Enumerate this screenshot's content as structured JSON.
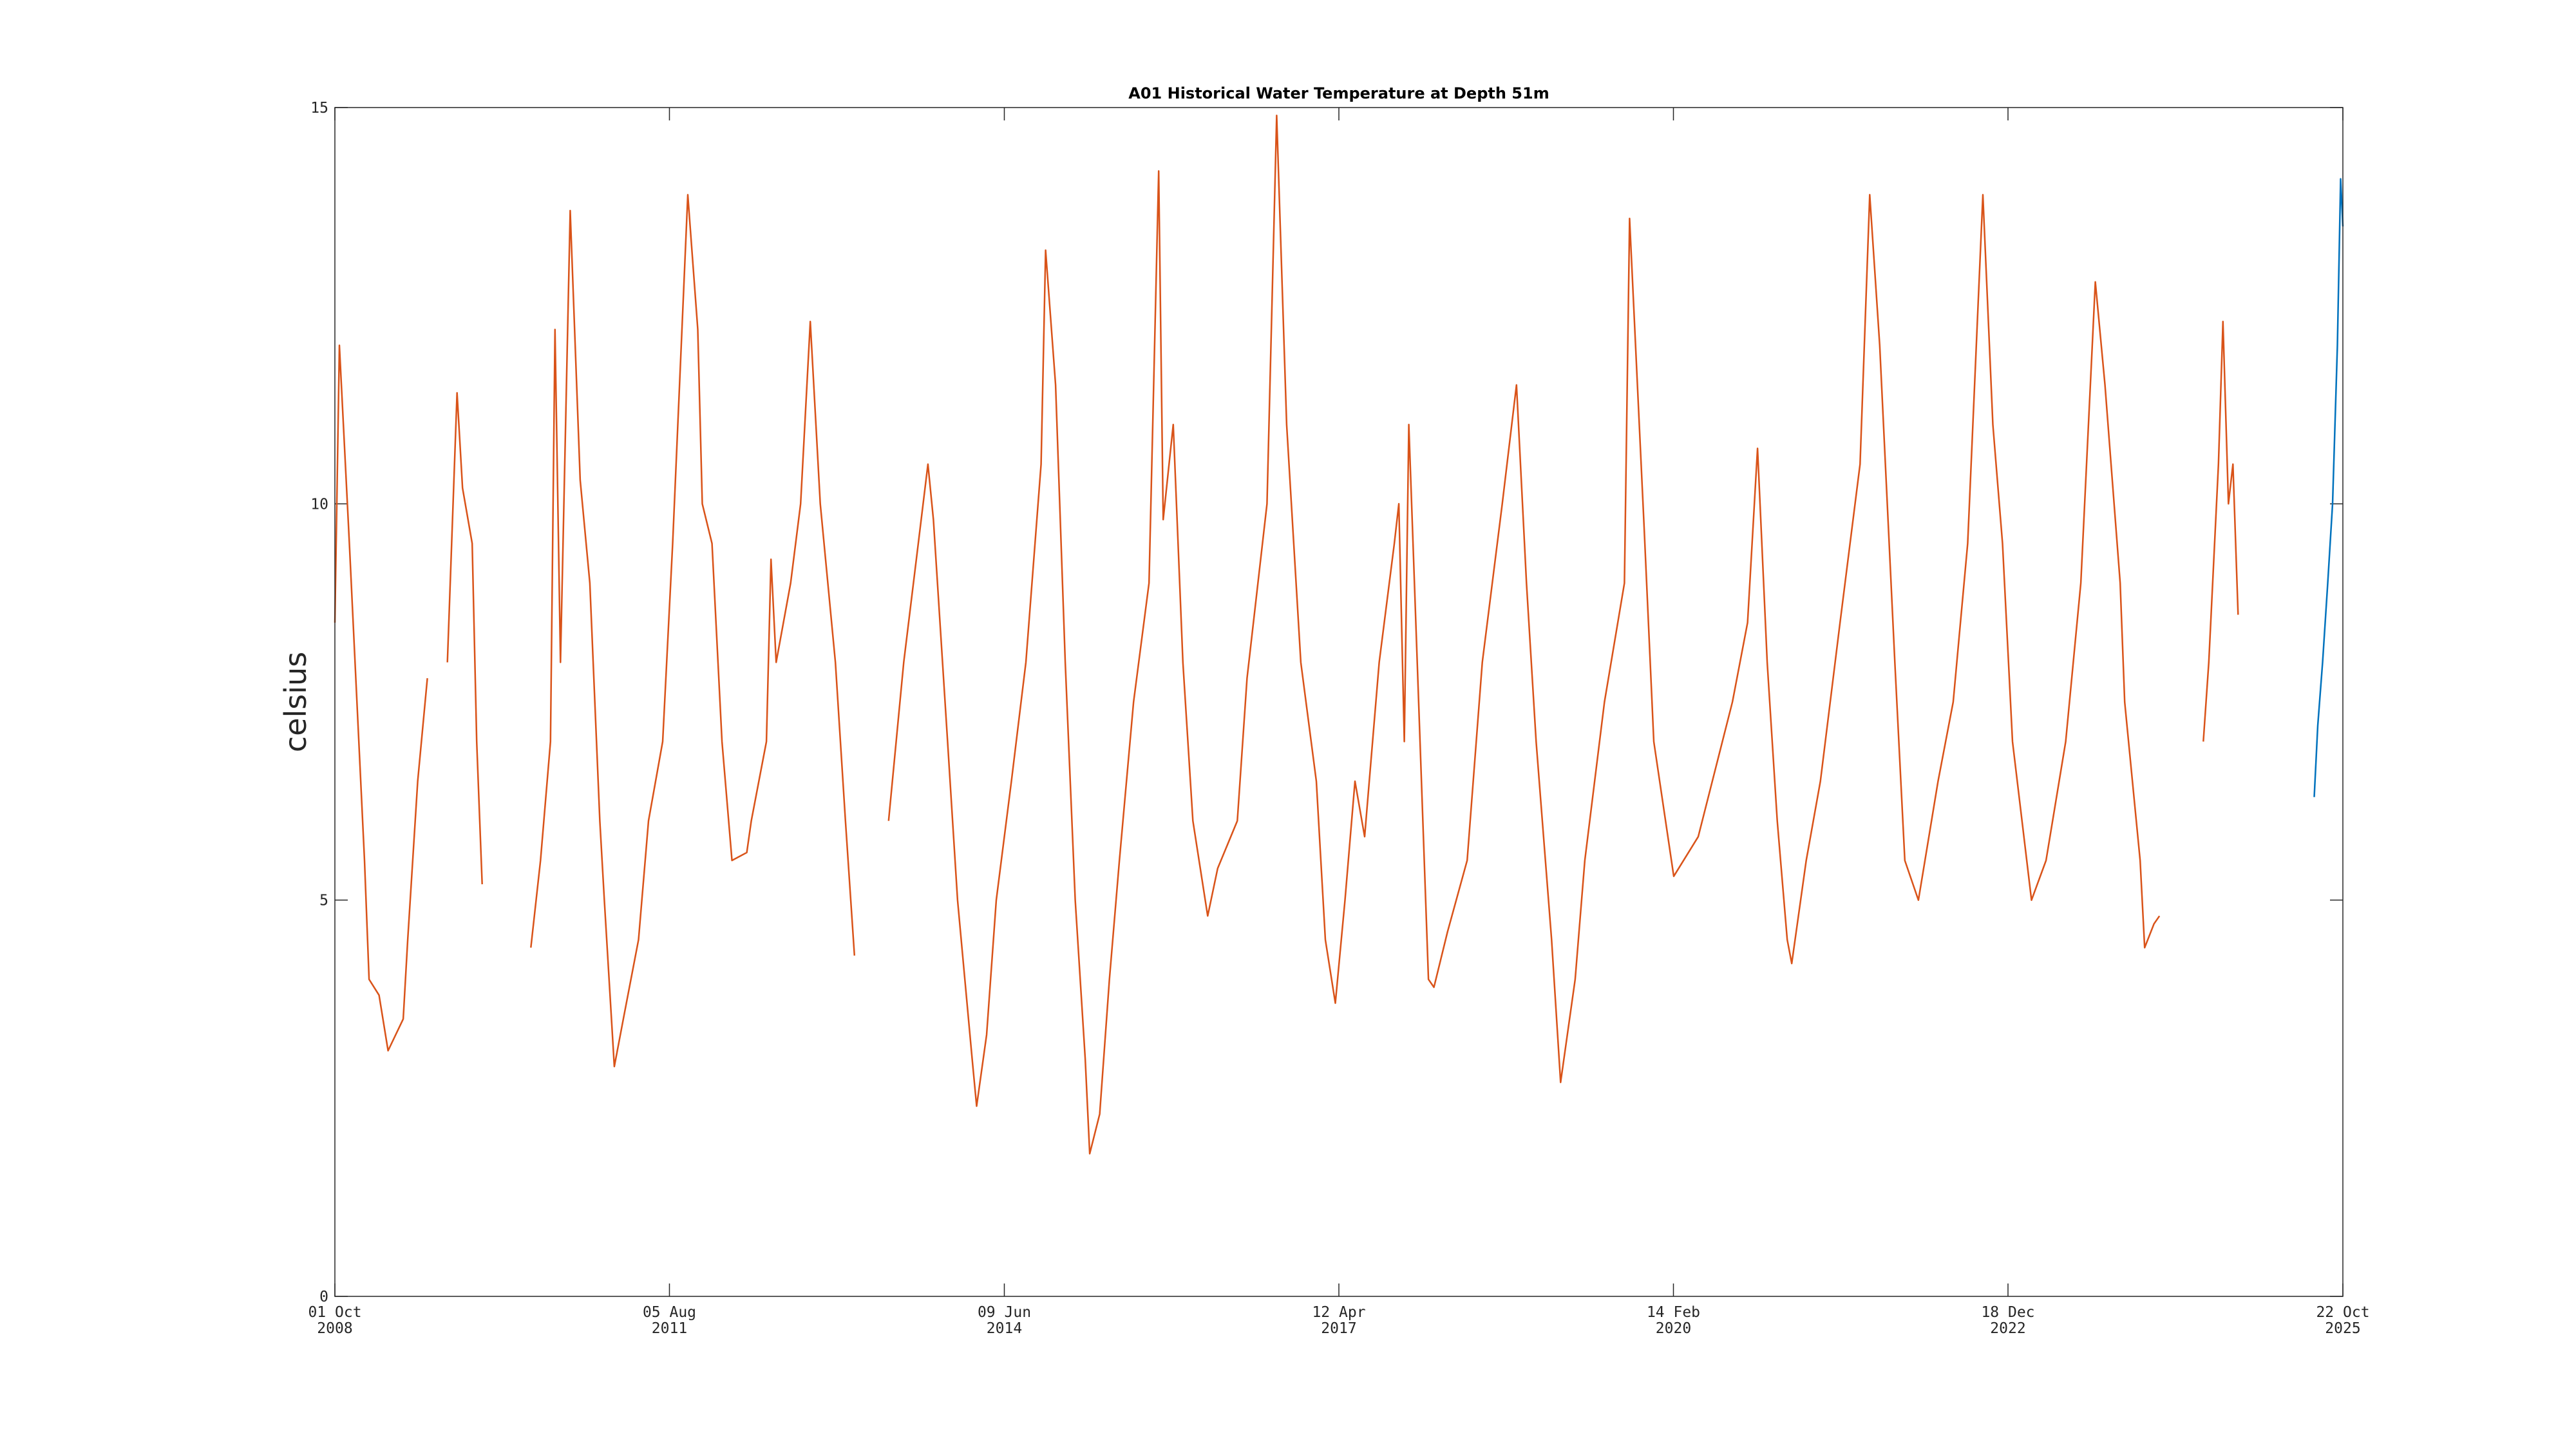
{
  "chart_data": {
    "type": "line",
    "title": "A01 Historical Water Temperature at Depth 51m",
    "ylabel": "celsius",
    "xlim": [
      "2008-10-01",
      "2025-10-22"
    ],
    "xticks": [
      {
        "value": "2008-10-01",
        "label": [
          "01 Oct",
          "2008"
        ]
      },
      {
        "value": "2011-08-05",
        "label": [
          "05 Aug",
          "2011"
        ]
      },
      {
        "value": "2014-06-09",
        "label": [
          "09 Jun",
          "2014"
        ]
      },
      {
        "value": "2017-04-12",
        "label": [
          "12 Apr",
          "2017"
        ]
      },
      {
        "value": "2020-02-14",
        "label": [
          "14 Feb",
          "2020"
        ]
      },
      {
        "value": "2022-12-18",
        "label": [
          "18 Dec",
          "2022"
        ]
      },
      {
        "value": "2025-10-22",
        "label": [
          "22 Oct",
          "2025"
        ]
      }
    ],
    "ylim": [
      0,
      15
    ],
    "yticks": [
      0,
      5,
      10,
      15
    ],
    "grid": false,
    "series": [
      {
        "color": "#D95319",
        "x": [
          "2008-10-01",
          "2008-10-15",
          "2008-11-15",
          "2009-01-01",
          "2009-01-15",
          "2009-02-15",
          "2009-03-15",
          "2009-05-01",
          "2009-05-15",
          "2009-06-15",
          "2009-07-15",
          "2009-08-15",
          "2009-09-15",
          "2009-10-15",
          "2009-11-01",
          "2009-12-01",
          "2009-12-15",
          "2010-01-01",
          "2010-03-15",
          "2010-06-01",
          "2010-07-01",
          "2010-08-01",
          "2010-08-15",
          "2010-09-01",
          "2010-10-01",
          "2010-11-01",
          "2010-12-01",
          "2011-01-01",
          "2011-01-15",
          "2011-02-15",
          "2011-03-15",
          "2011-05-01",
          "2011-06-01",
          "2011-07-15",
          "2011-08-15",
          "2011-10-01",
          "2011-11-01",
          "2011-11-15",
          "2011-12-15",
          "2012-01-15",
          "2012-02-15",
          "2012-04-01",
          "2012-04-15",
          "2012-06-01",
          "2012-06-15",
          "2012-07-01",
          "2012-08-15",
          "2012-09-15",
          "2012-10-15",
          "2012-11-15",
          "2013-01-01",
          "2013-02-01",
          "2013-03-01",
          "2013-04-15",
          "2013-06-15",
          "2013-08-01",
          "2013-09-15",
          "2013-10-15",
          "2013-11-01",
          "2013-12-15",
          "2014-01-15",
          "2014-03-01",
          "2014-03-15",
          "2014-04-15",
          "2014-05-15",
          "2014-07-01",
          "2014-08-15",
          "2014-10-01",
          "2014-10-15",
          "2014-11-15",
          "2014-12-15",
          "2015-01-15",
          "2015-02-15",
          "2015-03-01",
          "2015-04-01",
          "2015-05-01",
          "2015-06-01",
          "2015-07-15",
          "2015-09-01",
          "2015-10-01",
          "2015-10-15",
          "2015-11-15",
          "2015-12-15",
          "2016-01-15",
          "2016-03-01",
          "2016-04-01",
          "2016-06-01",
          "2016-07-01",
          "2016-09-01",
          "2016-10-01",
          "2016-11-01",
          "2016-12-15",
          "2017-02-01",
          "2017-03-01",
          "2017-04-01",
          "2017-05-01",
          "2017-06-01",
          "2017-07-01",
          "2017-08-15",
          "2017-10-01",
          "2017-10-15",
          "2017-11-01",
          "2017-11-15",
          "2018-01-15",
          "2018-02-01",
          "2018-03-15",
          "2018-05-15",
          "2018-07-01",
          "2018-09-01",
          "2018-10-15",
          "2018-11-15",
          "2018-12-15",
          "2019-02-01",
          "2019-03-01",
          "2019-04-15",
          "2019-05-15",
          "2019-07-15",
          "2019-09-15",
          "2019-10-01",
          "2019-11-15",
          "2019-12-15",
          "2020-02-15",
          "2020-05-01",
          "2020-08-15",
          "2020-10-01",
          "2020-11-01",
          "2020-12-01",
          "2021-01-01",
          "2021-02-01",
          "2021-02-15",
          "2021-04-01",
          "2021-05-15",
          "2021-07-15",
          "2021-09-15",
          "2021-10-15",
          "2021-11-15",
          "2022-01-01",
          "2022-02-01",
          "2022-03-15",
          "2022-05-15",
          "2022-07-01",
          "2022-08-15",
          "2022-10-01",
          "2022-11-01",
          "2022-12-01",
          "2023-01-01",
          "2023-03-01",
          "2023-04-15",
          "2023-06-15",
          "2023-08-01",
          "2023-09-15",
          "2023-10-15",
          "2023-12-01",
          "2023-12-15",
          "2024-02-01",
          "2024-02-15",
          "2024-03-15",
          "2024-04-01",
          "2024-06-01",
          "2024-08-15",
          "2024-09-01",
          "2024-10-01",
          "2024-10-15",
          "2024-11-01",
          "2024-11-15",
          "2024-12-01"
        ],
        "values": [
          8.5,
          12.0,
          9.5,
          5.5,
          4.0,
          3.8,
          3.1,
          3.5,
          4.5,
          6.5,
          7.8,
          null,
          8.0,
          11.4,
          10.2,
          9.5,
          7.0,
          5.2,
          null,
          4.4,
          5.5,
          7.0,
          12.2,
          8.0,
          13.7,
          10.3,
          9.0,
          6.0,
          5.0,
          2.9,
          3.5,
          4.5,
          6.0,
          7.0,
          9.5,
          13.9,
          12.2,
          10.0,
          9.5,
          7.0,
          5.5,
          5.6,
          6.0,
          7.0,
          9.3,
          8.0,
          9.0,
          10.0,
          12.3,
          10.0,
          8.0,
          6.0,
          4.3,
          null,
          6.0,
          8.0,
          9.5,
          10.5,
          9.8,
          7.0,
          5.0,
          3.0,
          2.4,
          3.3,
          5.0,
          6.5,
          8.0,
          10.5,
          13.2,
          11.5,
          8.0,
          5.0,
          3.0,
          1.8,
          2.3,
          4.0,
          5.5,
          7.5,
          9.0,
          14.2,
          9.8,
          11.0,
          8.0,
          6.0,
          4.8,
          5.4,
          6.0,
          7.8,
          10.0,
          14.9,
          11.0,
          8.0,
          6.5,
          4.5,
          3.7,
          5.0,
          6.5,
          5.8,
          8.0,
          9.5,
          10.0,
          7.0,
          11.0,
          4.0,
          3.9,
          4.6,
          5.5,
          8.0,
          10.0,
          11.5,
          9.0,
          7.0,
          4.5,
          2.7,
          4.0,
          5.5,
          7.5,
          9.0,
          13.6,
          9.7,
          7.0,
          5.3,
          5.8,
          7.5,
          8.5,
          10.7,
          8.0,
          6.0,
          4.5,
          4.2,
          5.5,
          6.5,
          8.5,
          10.5,
          13.9,
          12.0,
          8.0,
          5.5,
          5.0,
          6.5,
          7.5,
          9.5,
          13.9,
          11.0,
          9.5,
          7.0,
          5.0,
          5.5,
          7.0,
          9.0,
          12.8,
          11.5,
          9.0,
          7.5,
          5.5,
          4.4,
          4.7,
          4.8,
          null,
          7.0,
          8.0,
          10.5,
          12.3,
          10.0,
          10.5,
          8.6
        ]
      },
      {
        "color": "#0072BD",
        "x": [
          "2025-07-25",
          "2025-08-05",
          "2025-08-20",
          "2025-09-05",
          "2025-09-20",
          "2025-10-05",
          "2025-10-15",
          "2025-10-22"
        ],
        "values": [
          6.3,
          7.2,
          8.0,
          9.0,
          10.0,
          12.0,
          14.1,
          13.5
        ]
      }
    ]
  }
}
